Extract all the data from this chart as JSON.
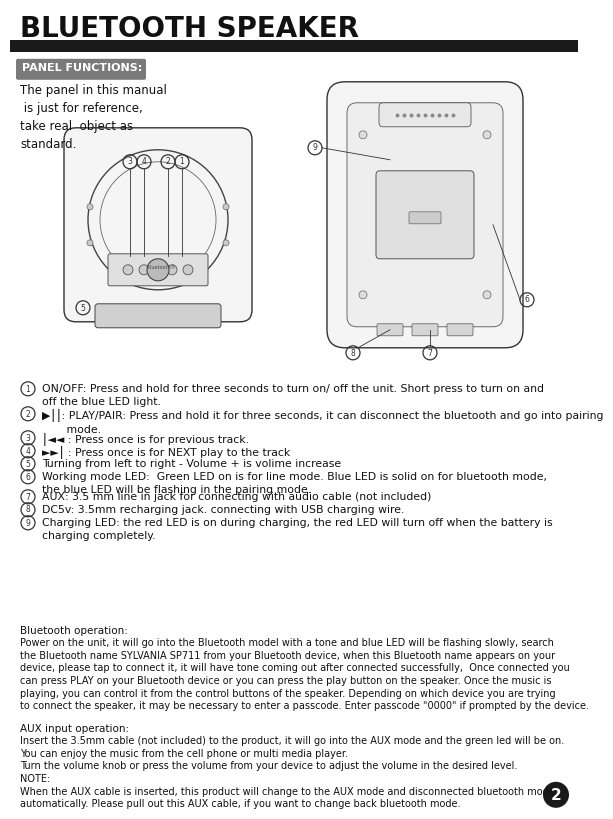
{
  "title": "BLUETOOTH SPEAKER",
  "title_bar_color": "#1a1a1a",
  "bg_color": "#ffffff",
  "panel_label": "PANEL FUNCTIONS:",
  "panel_label_bg": "#7a7a7a",
  "panel_label_color": "#ffffff",
  "panel_text": "The panel in this manual\n is just for reference,\ntake real  object as\nstandard.",
  "numbered_items": [
    {
      "num": "1",
      "text": "ON/OFF: Press and hold for three seconds to turn on/ off the unit. Short press to turn on and\noff the blue LED light."
    },
    {
      "num": "2",
      "text": "▶⎮⎮: PLAY/PAIR: Press and hold it for three seconds, it can disconnect the bluetooth and go into pairing\n       mode."
    },
    {
      "num": "3",
      "text": "⎮◄◄ : Press once is for previous track."
    },
    {
      "num": "4",
      "text": "►►⎮ : Press once is for NEXT play to the track"
    },
    {
      "num": "5",
      "text": "Turning from left to right - Volume + is volime increase"
    },
    {
      "num": "6",
      "text": "Working mode LED:  Green LED on is for line mode. Blue LED is solid on for bluetooth mode,\nthe blue LED will be flashing in the pairing mode."
    },
    {
      "num": "7",
      "text": "AUX: 3.5 mm line in jack for connecting with audio cable (not included)"
    },
    {
      "num": "8",
      "text": "DC5v: 3.5mm recharging jack. connecting with USB charging wire."
    },
    {
      "num": "9",
      "text": "Charging LED: the red LED is on during charging, the red LED will turn off when the battery is\ncharging completely."
    }
  ],
  "bluetooth_title": "Bluetooth operation:",
  "bluetooth_body": "Power on the unit, it will go into the Bluetooth model with a tone and blue LED will be flashing slowly, search\nthe Bluetooth name SYLVANIA SP711 from your Bluetooth device, when this Bluetooth name appears on your\ndevice, please tap to connect it, it will have tone coming out after connected successfully,  Once connected you\ncan press PLAY on your Bluetooth device or you can press the play button on the speaker. Once the music is\nplaying, you can control it from the control buttons of the speaker. Depending on which device you are trying\nto connect the speaker, it may be necessary to enter a passcode. Enter passcode \"0000\" if prompted by the device.",
  "aux_title": "AUX input operation:",
  "aux_body": "Insert the 3.5mm cable (not included) to the product, it will go into the AUX mode and the green led will be on.\nYou can enjoy the music from the cell phone or multi media player.\nTurn the volume knob or press the volume from your device to adjust the volume in the desired level.\nNOTE:\nWhen the AUX cable is inserted, this product will change to the AUX mode and disconnected bluetooth mode\nautomatically. Please pull out this AUX cable, if you want to change back bluetooth mode.",
  "page_number": "2",
  "page_num_bg": "#1a1a1a",
  "page_num_color": "#ffffff"
}
